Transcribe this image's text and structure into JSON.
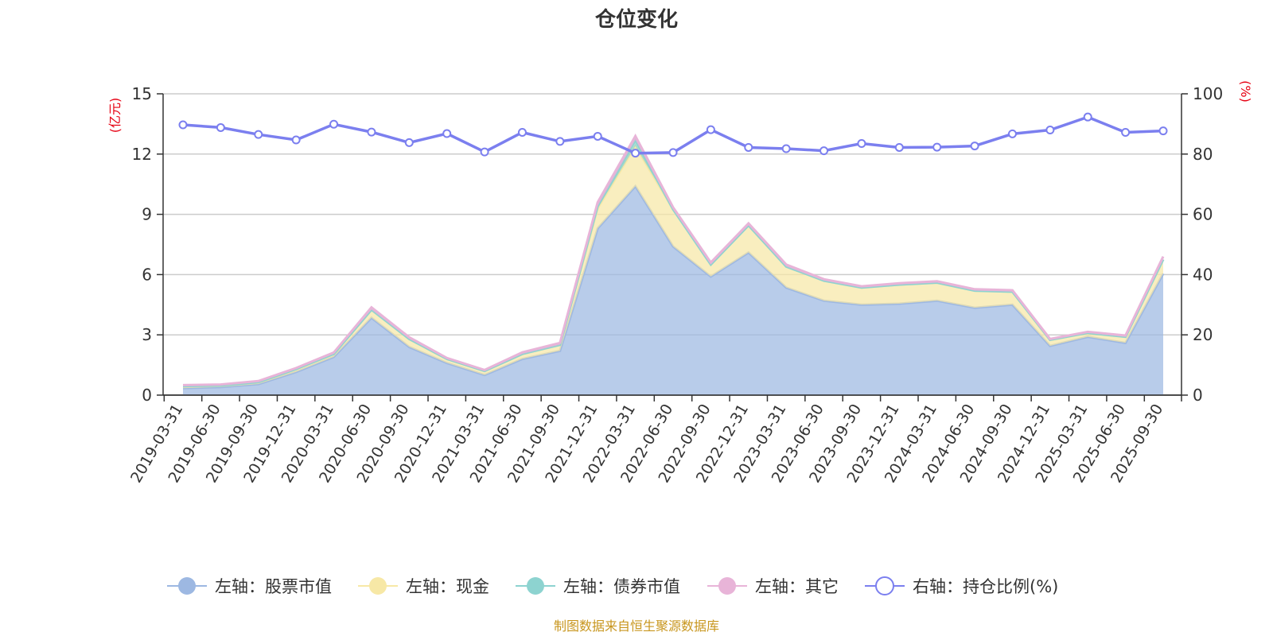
{
  "chart_data": {
    "type": "area",
    "title": "仓位变化",
    "y_left_unit": "(亿元)",
    "y_right_unit": "(%)",
    "y_left_range": [
      0,
      15
    ],
    "y_left_ticks": [
      "0",
      "3",
      "6",
      "9",
      "12",
      "15"
    ],
    "y_right_range": [
      0,
      100
    ],
    "y_right_ticks": [
      "0",
      "20",
      "40",
      "60",
      "80",
      "100"
    ],
    "grid": true,
    "legend_position": "bottom",
    "categories": [
      "2019-03-31",
      "2019-06-30",
      "2019-09-30",
      "2019-12-31",
      "2020-03-31",
      "2020-06-30",
      "2020-09-30",
      "2020-12-31",
      "2021-03-31",
      "2021-06-30",
      "2021-09-30",
      "2021-12-31",
      "2022-03-31",
      "2022-06-30",
      "2022-09-30",
      "2022-12-31",
      "2023-03-31",
      "2023-06-30",
      "2023-09-30",
      "2023-12-31",
      "2024-03-31",
      "2024-06-30",
      "2024-09-30",
      "2024-12-31",
      "2025-03-31",
      "2025-06-30",
      "2025-09-30"
    ],
    "series": [
      {
        "name": "左轴：股票市值",
        "axis": "left",
        "stack": "total",
        "color": "#9db8e2",
        "values": [
          0.35,
          0.4,
          0.55,
          1.15,
          1.9,
          3.85,
          2.4,
          1.6,
          1.0,
          1.8,
          2.2,
          8.3,
          10.4,
          7.4,
          5.9,
          7.1,
          5.35,
          4.7,
          4.5,
          4.55,
          4.7,
          4.35,
          4.5,
          2.45,
          2.9,
          2.6,
          6.05
        ]
      },
      {
        "name": "左轴：现金",
        "axis": "left",
        "stack": "total",
        "color": "#f7e8a6",
        "values": [
          0.1,
          0.08,
          0.1,
          0.15,
          0.15,
          0.4,
          0.4,
          0.2,
          0.2,
          0.25,
          0.3,
          1.0,
          2.0,
          1.85,
          0.6,
          1.35,
          1.05,
          1.0,
          0.85,
          0.95,
          0.9,
          0.85,
          0.65,
          0.3,
          0.2,
          0.3,
          0.7
        ]
      },
      {
        "name": "左轴：债券市值",
        "axis": "left",
        "stack": "total",
        "color": "#8dd3d0",
        "values": [
          0,
          0,
          0,
          0,
          0,
          0,
          0,
          0,
          0,
          0,
          0,
          0.1,
          0.3,
          0,
          0,
          0,
          0,
          0,
          0,
          0,
          0,
          0,
          0,
          0,
          0,
          0,
          0
        ]
      },
      {
        "name": "左轴：其它",
        "axis": "left",
        "stack": "total",
        "color": "#e8b4d8",
        "values": [
          0.05,
          0.05,
          0.05,
          0.05,
          0.07,
          0.12,
          0.08,
          0.05,
          0.05,
          0.08,
          0.1,
          0.2,
          0.2,
          0.1,
          0.1,
          0.1,
          0.1,
          0.07,
          0.07,
          0.07,
          0.07,
          0.07,
          0.07,
          0.05,
          0.05,
          0.07,
          0.15
        ]
      },
      {
        "name": "右轴：持仓比例(%)",
        "axis": "right",
        "type": "line",
        "color": "#7b7fef",
        "values": [
          89.7,
          88.8,
          86.5,
          84.7,
          89.9,
          87.3,
          83.8,
          86.8,
          80.7,
          87.2,
          84.2,
          85.9,
          80.3,
          80.5,
          88.1,
          82.2,
          81.8,
          81.1,
          83.5,
          82.2,
          82.3,
          82.7,
          86.7,
          88.0,
          92.3,
          87.2,
          87.7
        ]
      }
    ],
    "source_text": "制图数据来自恒生聚源数据库"
  }
}
